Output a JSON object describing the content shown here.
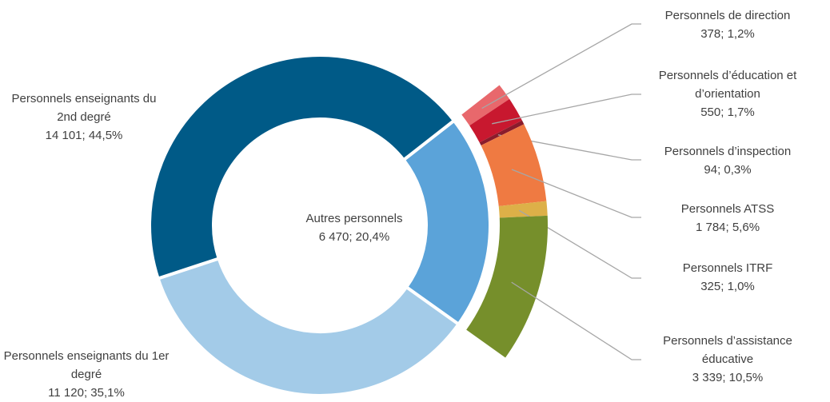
{
  "chart_data": {
    "type": "donut",
    "categories": [
      "Autres personnels",
      "Personnels enseignants du 1er degré",
      "Personnels enseignants du 2nd degré"
    ],
    "values": [
      6470,
      11120,
      14101
    ],
    "value_labels": [
      "6 470; 20,4%",
      "11 120; 35,1%",
      "14 101; 44,5%"
    ],
    "colors": [
      "#5ba3d9",
      "#a3cbe8",
      "#005a87"
    ],
    "breakdown": {
      "categories": [
        "Personnels de direction",
        "Personnels d’éducation et d’orientation",
        "Personnels d’inspection",
        "Personnels ATSS",
        "Personnels ITRF",
        "Personnels d’assistance éducative"
      ],
      "values": [
        378,
        550,
        94,
        1784,
        325,
        3339
      ],
      "value_labels": [
        "378; 1,2%",
        "550; 1,7%",
        "94; 0,3%",
        "1 784; 5,6%",
        "325; 1,0%",
        "3 339; 10,5%"
      ],
      "colors": [
        "#e8686c",
        "#c8182f",
        "#8a1c2c",
        "#ef7a42",
        "#ddb048",
        "#768f2b"
      ]
    }
  }
}
